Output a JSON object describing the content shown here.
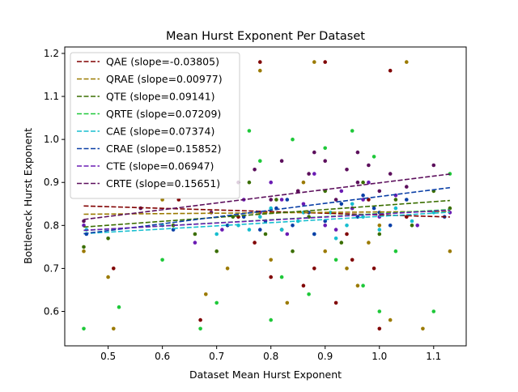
{
  "chart_data": {
    "type": "scatter",
    "title": "Mean Hurst Exponent Per Dataset",
    "xlabel": "Dataset Mean Hurst Exponent",
    "ylabel": "Bottleneck Hurst Exponent",
    "xlim": [
      0.42,
      1.16
    ],
    "ylim": [
      0.52,
      1.215
    ],
    "xticks": [
      0.5,
      0.6,
      0.7,
      0.8,
      0.9,
      1.0,
      1.1
    ],
    "xtick_labels": [
      "0.5",
      "0.6",
      "0.7",
      "0.8",
      "0.9",
      "1.0",
      "1.1"
    ],
    "yticks": [
      0.6,
      0.7,
      0.8,
      0.9,
      1.0,
      1.1,
      1.2
    ],
    "ytick_labels": [
      "0.6",
      "0.7",
      "0.8",
      "0.9",
      "1.0",
      "1.1",
      "1.2"
    ],
    "grid": false,
    "legend_position": "top-left",
    "x_data_range": [
      0.455,
      1.13
    ],
    "series": [
      {
        "name": "QAE (slope=-0.03805)",
        "color": "#800000",
        "fit": {
          "slope": -0.03805,
          "intercept": 0.8626
        },
        "points": [
          [
            0.51,
            0.7
          ],
          [
            0.78,
            1.18
          ],
          [
            0.82,
            0.79
          ],
          [
            0.85,
            0.88
          ],
          [
            0.88,
            0.7
          ],
          [
            0.9,
            1.18
          ],
          [
            0.92,
            0.62
          ],
          [
            0.95,
            0.72
          ],
          [
            0.98,
            0.86
          ],
          [
            1.0,
            0.56
          ],
          [
            1.02,
            1.16
          ],
          [
            0.67,
            0.58
          ],
          [
            0.74,
            0.82
          ],
          [
            0.8,
            0.68
          ],
          [
            0.86,
            0.66
          ],
          [
            0.94,
            0.78
          ],
          [
            0.99,
            0.7
          ],
          [
            1.05,
            0.82
          ],
          [
            0.63,
            0.86
          ],
          [
            0.77,
            0.76
          ]
        ]
      },
      {
        "name": "QRAE (slope=0.00977)",
        "color": "#9b7a00",
        "fit": {
          "slope": 0.00977,
          "intercept": 0.8216
        },
        "points": [
          [
            0.455,
            0.74
          ],
          [
            0.5,
            0.68
          ],
          [
            0.51,
            0.56
          ],
          [
            0.6,
            0.86
          ],
          [
            0.68,
            0.64
          ],
          [
            0.72,
            0.7
          ],
          [
            0.78,
            1.16
          ],
          [
            0.8,
            0.72
          ],
          [
            0.83,
            0.62
          ],
          [
            0.86,
            0.9
          ],
          [
            0.88,
            1.18
          ],
          [
            0.9,
            0.74
          ],
          [
            0.94,
            0.7
          ],
          [
            0.96,
            0.66
          ],
          [
            0.98,
            0.76
          ],
          [
            1.0,
            0.8
          ],
          [
            1.02,
            0.58
          ],
          [
            1.05,
            1.18
          ],
          [
            1.08,
            0.56
          ],
          [
            1.13,
            0.74
          ]
        ]
      },
      {
        "name": "QTE (slope=0.09141)",
        "color": "#3a6e00",
        "fit": {
          "slope": 0.09141,
          "intercept": 0.7547
        },
        "points": [
          [
            0.455,
            0.75
          ],
          [
            0.5,
            0.77
          ],
          [
            0.62,
            0.8
          ],
          [
            0.7,
            0.74
          ],
          [
            0.73,
            0.82
          ],
          [
            0.76,
            0.9
          ],
          [
            0.79,
            0.78
          ],
          [
            0.81,
            0.86
          ],
          [
            0.84,
            0.74
          ],
          [
            0.87,
            0.82
          ],
          [
            0.9,
            0.88
          ],
          [
            0.93,
            0.76
          ],
          [
            0.95,
            0.84
          ],
          [
            0.97,
            0.9
          ],
          [
            1.0,
            0.78
          ],
          [
            1.03,
            0.86
          ],
          [
            1.06,
            0.8
          ],
          [
            1.1,
            0.88
          ],
          [
            1.13,
            0.84
          ],
          [
            0.66,
            0.78
          ]
        ]
      },
      {
        "name": "QRTE (slope=0.07209)",
        "color": "#1ec839",
        "fit": {
          "slope": 0.07209,
          "intercept": 0.7555
        },
        "points": [
          [
            0.455,
            0.56
          ],
          [
            0.52,
            0.61
          ],
          [
            0.6,
            0.72
          ],
          [
            0.67,
            0.56
          ],
          [
            0.7,
            0.62
          ],
          [
            0.76,
            1.02
          ],
          [
            0.78,
            0.95
          ],
          [
            0.8,
            0.58
          ],
          [
            0.82,
            0.68
          ],
          [
            0.84,
            1.0
          ],
          [
            0.87,
            0.64
          ],
          [
            0.9,
            0.98
          ],
          [
            0.92,
            0.72
          ],
          [
            0.95,
            1.02
          ],
          [
            0.97,
            0.66
          ],
          [
            0.99,
            0.96
          ],
          [
            1.0,
            0.6
          ],
          [
            1.03,
            0.74
          ],
          [
            1.1,
            0.6
          ],
          [
            1.13,
            0.92
          ]
        ]
      },
      {
        "name": "CAE (slope=0.07374)",
        "color": "#17becf",
        "fit": {
          "slope": 0.07374,
          "intercept": 0.7474
        },
        "points": [
          [
            0.46,
            0.79
          ],
          [
            0.6,
            0.8
          ],
          [
            0.7,
            0.78
          ],
          [
            0.74,
            0.8
          ],
          [
            0.78,
            0.82
          ],
          [
            0.82,
            0.79
          ],
          [
            0.85,
            0.81
          ],
          [
            0.88,
            0.78
          ],
          [
            0.91,
            0.83
          ],
          [
            0.94,
            0.8
          ],
          [
            0.97,
            0.82
          ],
          [
            1.0,
            0.79
          ],
          [
            1.03,
            0.84
          ],
          [
            1.06,
            0.81
          ],
          [
            1.1,
            0.83
          ],
          [
            0.8,
            0.84
          ],
          [
            0.92,
            0.77
          ],
          [
            0.76,
            0.79
          ],
          [
            0.95,
            0.85
          ],
          [
            0.86,
            0.83
          ]
        ]
      },
      {
        "name": "CRAE (slope=0.15852)",
        "color": "#0a3fa6",
        "fit": {
          "slope": 0.15852,
          "intercept": 0.7087
        },
        "points": [
          [
            0.46,
            0.78
          ],
          [
            0.62,
            0.79
          ],
          [
            0.72,
            0.8
          ],
          [
            0.75,
            0.82
          ],
          [
            0.78,
            0.79
          ],
          [
            0.81,
            0.84
          ],
          [
            0.84,
            0.8
          ],
          [
            0.87,
            0.83
          ],
          [
            0.9,
            0.81
          ],
          [
            0.93,
            0.85
          ],
          [
            0.96,
            0.82
          ],
          [
            0.99,
            0.84
          ],
          [
            1.02,
            0.8
          ],
          [
            1.05,
            0.86
          ],
          [
            1.12,
            0.82
          ],
          [
            0.83,
            0.86
          ],
          [
            0.88,
            0.78
          ],
          [
            0.97,
            0.87
          ],
          [
            1.0,
            0.83
          ],
          [
            0.79,
            0.81
          ]
        ]
      },
      {
        "name": "CTE (slope=0.06947)",
        "color": "#6a1bb3",
        "fit": {
          "slope": 0.06947,
          "intercept": 0.757
        },
        "points": [
          [
            0.455,
            0.8
          ],
          [
            0.66,
            0.76
          ],
          [
            0.71,
            0.79
          ],
          [
            0.75,
            0.86
          ],
          [
            0.78,
            0.83
          ],
          [
            0.8,
            0.9
          ],
          [
            0.83,
            0.78
          ],
          [
            0.86,
            0.85
          ],
          [
            0.88,
            0.92
          ],
          [
            0.9,
            0.8
          ],
          [
            0.93,
            0.88
          ],
          [
            0.95,
            0.84
          ],
          [
            0.98,
            0.9
          ],
          [
            1.0,
            0.82
          ],
          [
            1.03,
            0.87
          ],
          [
            1.07,
            0.8
          ],
          [
            1.13,
            0.83
          ],
          [
            0.82,
            0.86
          ],
          [
            0.92,
            0.79
          ],
          [
            0.97,
            0.86
          ]
        ]
      },
      {
        "name": "CRTE (slope=0.15651)",
        "color": "#5c0f5c",
        "fit": {
          "slope": 0.15651,
          "intercept": 0.7426
        },
        "points": [
          [
            0.455,
            0.81
          ],
          [
            0.56,
            0.84
          ],
          [
            0.69,
            0.83
          ],
          [
            0.74,
            0.9
          ],
          [
            0.77,
            0.93
          ],
          [
            0.8,
            0.86
          ],
          [
            0.82,
            0.95
          ],
          [
            0.85,
            0.88
          ],
          [
            0.87,
            0.92
          ],
          [
            0.9,
            0.95
          ],
          [
            0.92,
            0.86
          ],
          [
            0.94,
            0.93
          ],
          [
            0.96,
            0.9
          ],
          [
            0.98,
            0.94
          ],
          [
            1.0,
            0.88
          ],
          [
            1.02,
            0.92
          ],
          [
            1.05,
            0.89
          ],
          [
            1.1,
            0.94
          ],
          [
            0.88,
            0.97
          ],
          [
            0.96,
            0.97
          ]
        ]
      }
    ]
  }
}
